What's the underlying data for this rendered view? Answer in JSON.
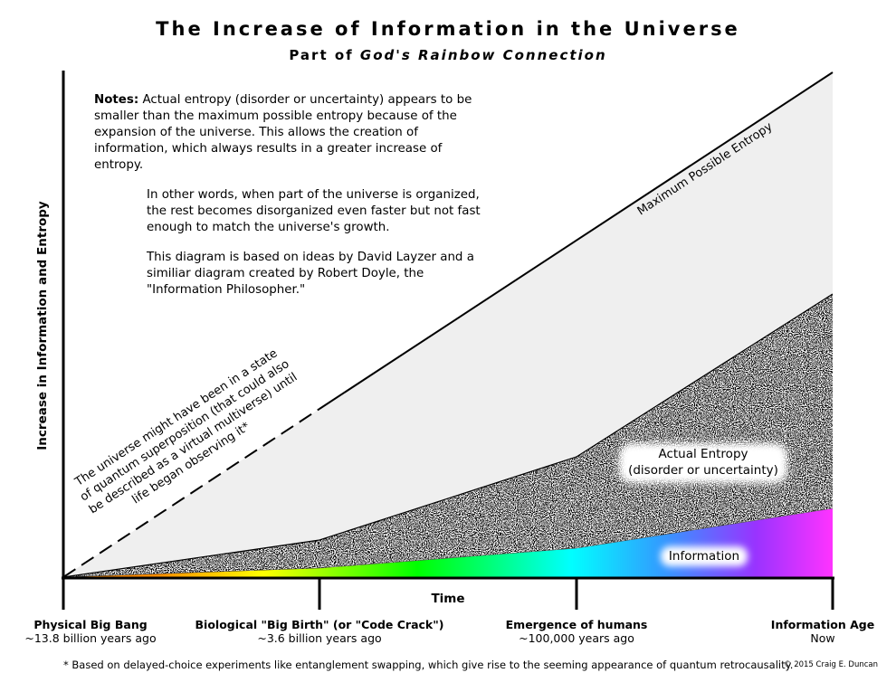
{
  "title": "The Increase of Information in the Universe",
  "subtitle": {
    "prefix": "Part of",
    "italic": "God's Rainbow Connection"
  },
  "notes": {
    "label": "Notes:",
    "p1": "Actual entropy (disorder or uncertainty) appears to be smaller than the maximum possible entropy because of the expansion of the universe. This allows the creation of information, which always results in a greater increase of entropy.",
    "p2": "In other words, when part of the universe is organized, the rest becomes disorganized even faster but not fast enough to match the universe's growth.",
    "p3": "This diagram is based on ideas by David Layzer and a similiar diagram created by Robert Doyle, the \"Information Philosopher.\""
  },
  "axes": {
    "ylabel": "Increase in Information and Entropy",
    "xlabel": "Time"
  },
  "regions": {
    "max_entropy_label": "Maximum Possible Entropy",
    "actual_entropy_line1": "Actual Entropy",
    "actual_entropy_line2": "(disorder or uncertainty)",
    "information_label": "Information"
  },
  "superposition_note": {
    "line1": "The universe might have been in a state",
    "line2": "of quantum superposition (that could also",
    "line3": "be described as a virtual multiverse) until",
    "line4": "life began observing it*"
  },
  "x_categories": [
    {
      "name": "Physical Big Bang",
      "detail": "~13.8 billion years ago"
    },
    {
      "name": "Biological \"Big Birth\" (or \"Code Crack\")",
      "detail": "~3.6 billion years ago"
    },
    {
      "name": "Emergence of humans",
      "detail": "~100,000 years ago"
    },
    {
      "name": "Information Age",
      "detail": "Now"
    }
  ],
  "footnote": "* Based on delayed-choice experiments like entanglement swapping, which give rise to the seeming appearance of quantum retrocausality.",
  "copyright": "© 2015 Craig E. Duncan",
  "colors": {
    "max_entropy_fill": "#efefef",
    "line": "#000000",
    "rainbow": [
      "#ff8c00",
      "#ffff00",
      "#00ff00",
      "#00ffff",
      "#3399ff",
      "#9933ff",
      "#ff33ff"
    ]
  }
}
